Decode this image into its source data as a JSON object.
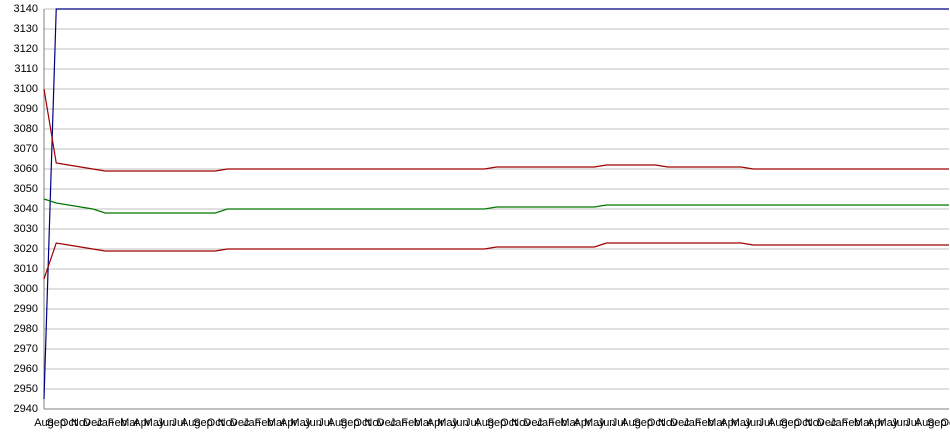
{
  "chart_data": {
    "type": "line",
    "categories": [
      "Aug",
      "Sep",
      "Oct",
      "Nov",
      "Dec",
      "Jan",
      "Feb",
      "Mar",
      "Apr",
      "May",
      "Jun",
      "Jul",
      "Aug",
      "Sep",
      "Oct",
      "Nov",
      "Dec",
      "Jan",
      "Feb",
      "Mar",
      "Apr",
      "May",
      "Jun",
      "Jul",
      "Aug",
      "Sep",
      "Oct",
      "Nov",
      "Dec",
      "Jan",
      "Feb",
      "Mar",
      "Apr",
      "May",
      "Jun",
      "Jul",
      "Aug",
      "Sep",
      "Oct",
      "Nov",
      "Dec",
      "Jan",
      "Feb",
      "Mar",
      "Apr",
      "May",
      "Jun",
      "Jul",
      "Aug",
      "Sep",
      "Oct",
      "Nov",
      "Dec",
      "Jan",
      "Feb",
      "Mar",
      "Apr",
      "May",
      "Jun",
      "Jul",
      "Aug",
      "Sep",
      "Oct",
      "Nov",
      "Dec",
      "Jan",
      "Feb",
      "Mar",
      "Apr",
      "May",
      "Jun",
      "Jul",
      "Aug",
      "Sep",
      "Oct"
    ],
    "series": [
      {
        "color": "#000080",
        "values": [
          2945,
          3140,
          3140,
          3140,
          3140,
          3140,
          3140,
          3140,
          3140,
          3140,
          3140,
          3140,
          3140,
          3140,
          3140,
          3140,
          3140,
          3140,
          3140,
          3140,
          3140,
          3140,
          3140,
          3140,
          3140,
          3140,
          3140,
          3140,
          3140,
          3140,
          3140,
          3140,
          3140,
          3140,
          3140,
          3140,
          3140,
          3140,
          3140,
          3140,
          3140,
          3140,
          3140,
          3140,
          3140,
          3140,
          3140,
          3140,
          3140,
          3140,
          3140,
          3140,
          3140,
          3140,
          3140,
          3140,
          3140,
          3140,
          3140,
          3140,
          3140,
          3140,
          3140,
          3140,
          3140,
          3140,
          3140,
          3140,
          3140,
          3140,
          3140,
          3140,
          3140,
          3140,
          3140
        ]
      },
      {
        "color": "#a00000",
        "values": [
          3100,
          3063,
          3062,
          3061,
          3060,
          3059,
          3059,
          3059,
          3059,
          3059,
          3059,
          3059,
          3059,
          3059,
          3059,
          3060,
          3060,
          3060,
          3060,
          3060,
          3060,
          3060,
          3060,
          3060,
          3060,
          3060,
          3060,
          3060,
          3060,
          3060,
          3060,
          3060,
          3060,
          3060,
          3060,
          3060,
          3060,
          3061,
          3061,
          3061,
          3061,
          3061,
          3061,
          3061,
          3061,
          3061,
          3062,
          3062,
          3062,
          3062,
          3062,
          3061,
          3061,
          3061,
          3061,
          3061,
          3061,
          3061,
          3060,
          3060,
          3060,
          3060,
          3060,
          3060,
          3060,
          3060,
          3060,
          3060,
          3060,
          3060,
          3060,
          3060,
          3060,
          3060,
          3060
        ]
      },
      {
        "color": "#007700",
        "values": [
          3045,
          3043,
          3042,
          3041,
          3040,
          3038,
          3038,
          3038,
          3038,
          3038,
          3038,
          3038,
          3038,
          3038,
          3038,
          3040,
          3040,
          3040,
          3040,
          3040,
          3040,
          3040,
          3040,
          3040,
          3040,
          3040,
          3040,
          3040,
          3040,
          3040,
          3040,
          3040,
          3040,
          3040,
          3040,
          3040,
          3040,
          3041,
          3041,
          3041,
          3041,
          3041,
          3041,
          3041,
          3041,
          3041,
          3042,
          3042,
          3042,
          3042,
          3042,
          3042,
          3042,
          3042,
          3042,
          3042,
          3042,
          3042,
          3042,
          3042,
          3042,
          3042,
          3042,
          3042,
          3042,
          3042,
          3042,
          3042,
          3042,
          3042,
          3042,
          3042,
          3042,
          3042,
          3042
        ]
      },
      {
        "color": "#a00000",
        "values": [
          3005,
          3023,
          3022,
          3021,
          3020,
          3019,
          3019,
          3019,
          3019,
          3019,
          3019,
          3019,
          3019,
          3019,
          3019,
          3020,
          3020,
          3020,
          3020,
          3020,
          3020,
          3020,
          3020,
          3020,
          3020,
          3020,
          3020,
          3020,
          3020,
          3020,
          3020,
          3020,
          3020,
          3020,
          3020,
          3020,
          3020,
          3021,
          3021,
          3021,
          3021,
          3021,
          3021,
          3021,
          3021,
          3021,
          3023,
          3023,
          3023,
          3023,
          3023,
          3023,
          3023,
          3023,
          3023,
          3023,
          3023,
          3023,
          3022,
          3022,
          3022,
          3022,
          3022,
          3022,
          3022,
          3022,
          3022,
          3022,
          3022,
          3022,
          3022,
          3022,
          3022,
          3022,
          3022
        ]
      }
    ],
    "ylim": [
      2940,
      3140
    ],
    "yticks": [
      2940,
      2950,
      2960,
      2970,
      2980,
      2990,
      3000,
      3010,
      3020,
      3030,
      3040,
      3050,
      3060,
      3070,
      3080,
      3090,
      3100,
      3110,
      3120,
      3130,
      3140
    ],
    "grid": true
  }
}
